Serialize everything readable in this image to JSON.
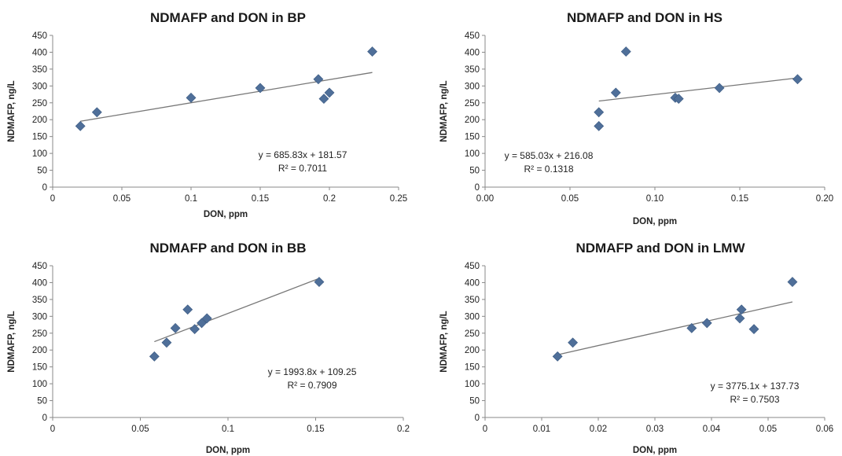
{
  "colors": {
    "marker": "#4f6f99",
    "trend": "#777777",
    "axis": "#888888"
  },
  "chart_data": [
    {
      "type": "scatter",
      "title": "NDMAFP and DON in BP",
      "xlabel": "DON, ppm",
      "ylabel": "NDMAFP, ng/L",
      "xlim": [
        0,
        0.25
      ],
      "ylim": [
        0,
        450
      ],
      "x_ticks": [
        0,
        0.05,
        0.1,
        0.15,
        0.2,
        0.25
      ],
      "x_tick_labels": [
        "0",
        "0.05",
        "0.1",
        "0.15",
        "0.2",
        "0.25"
      ],
      "y_ticks": [
        0,
        50,
        100,
        150,
        200,
        250,
        300,
        350,
        400,
        450
      ],
      "y_tick_labels": [
        "0",
        "50",
        "100",
        "150",
        "200",
        "250",
        "300",
        "350",
        "400",
        "450"
      ],
      "points": [
        {
          "x": 0.02,
          "y": 181
        },
        {
          "x": 0.032,
          "y": 222
        },
        {
          "x": 0.1,
          "y": 265
        },
        {
          "x": 0.15,
          "y": 294
        },
        {
          "x": 0.192,
          "y": 320
        },
        {
          "x": 0.196,
          "y": 262
        },
        {
          "x": 0.2,
          "y": 280
        },
        {
          "x": 0.231,
          "y": 402
        }
      ],
      "trendline": {
        "slope": 685.83,
        "intercept": 181.57,
        "x_range": [
          0.02,
          0.231
        ]
      },
      "equation": "y = 685.83x + 181.57",
      "r_squared": "R² = 0.7011",
      "grid": false,
      "legend": "none"
    },
    {
      "type": "scatter",
      "title": "NDMAFP and DON in HS",
      "xlabel": "DON, ppm",
      "ylabel": "NDMAFP, ng/L",
      "xlim": [
        0,
        0.2
      ],
      "ylim": [
        0,
        450
      ],
      "x_ticks": [
        0,
        0.05,
        0.1,
        0.15,
        0.2
      ],
      "x_tick_labels": [
        "0.00",
        "0.05",
        "0.10",
        "0.15",
        "0.20"
      ],
      "y_ticks": [
        0,
        50,
        100,
        150,
        200,
        250,
        300,
        350,
        400,
        450
      ],
      "y_tick_labels": [
        "0",
        "50",
        "100",
        "150",
        "200",
        "250",
        "300",
        "350",
        "400",
        "450"
      ],
      "points": [
        {
          "x": 0.067,
          "y": 181
        },
        {
          "x": 0.067,
          "y": 222
        },
        {
          "x": 0.077,
          "y": 280
        },
        {
          "x": 0.083,
          "y": 402
        },
        {
          "x": 0.112,
          "y": 265
        },
        {
          "x": 0.114,
          "y": 262
        },
        {
          "x": 0.138,
          "y": 294
        },
        {
          "x": 0.184,
          "y": 320
        }
      ],
      "trendline": {
        "slope": 585.03,
        "intercept": 216.08,
        "x_range": [
          0.067,
          0.184
        ]
      },
      "equation": "y = 585.03x + 216.08",
      "r_squared": "R² = 0.1318",
      "grid": false,
      "legend": "none"
    },
    {
      "type": "scatter",
      "title": "NDMAFP and DON in BB",
      "xlabel": "DON, ppm",
      "ylabel": "NDMAFP, ng/L",
      "xlim": [
        0,
        0.2
      ],
      "ylim": [
        0,
        450
      ],
      "x_ticks": [
        0,
        0.05,
        0.1,
        0.15,
        0.2
      ],
      "x_tick_labels": [
        "0",
        "0.05",
        "0.1",
        "0.15",
        "0.2"
      ],
      "y_ticks": [
        0,
        50,
        100,
        150,
        200,
        250,
        300,
        350,
        400,
        450
      ],
      "y_tick_labels": [
        "0",
        "50",
        "100",
        "150",
        "200",
        "250",
        "300",
        "350",
        "400",
        "450"
      ],
      "points": [
        {
          "x": 0.058,
          "y": 181
        },
        {
          "x": 0.065,
          "y": 222
        },
        {
          "x": 0.07,
          "y": 265
        },
        {
          "x": 0.077,
          "y": 320
        },
        {
          "x": 0.081,
          "y": 262
        },
        {
          "x": 0.085,
          "y": 280
        },
        {
          "x": 0.088,
          "y": 294
        },
        {
          "x": 0.152,
          "y": 402
        }
      ],
      "trendline": {
        "slope": 1993.8,
        "intercept": 109.25,
        "x_range": [
          0.058,
          0.152
        ]
      },
      "equation": "y = 1993.8x + 109.25",
      "r_squared": "R² = 0.7909",
      "grid": false,
      "legend": "none"
    },
    {
      "type": "scatter",
      "title": "NDMAFP and DON in LMW",
      "xlabel": "DON, ppm",
      "ylabel": "NDMAFP, ng/L",
      "xlim": [
        0,
        0.06
      ],
      "ylim": [
        0,
        450
      ],
      "x_ticks": [
        0,
        0.01,
        0.02,
        0.03,
        0.04,
        0.05,
        0.06
      ],
      "x_tick_labels": [
        "0",
        "0.01",
        "0.02",
        "0.03",
        "0.04",
        "0.05",
        "0.06"
      ],
      "y_ticks": [
        0,
        50,
        100,
        150,
        200,
        250,
        300,
        350,
        400,
        450
      ],
      "y_tick_labels": [
        "0",
        "50",
        "100",
        "150",
        "200",
        "250",
        "300",
        "350",
        "400",
        "450"
      ],
      "points": [
        {
          "x": 0.0128,
          "y": 181
        },
        {
          "x": 0.0155,
          "y": 222
        },
        {
          "x": 0.0365,
          "y": 265
        },
        {
          "x": 0.0392,
          "y": 280
        },
        {
          "x": 0.045,
          "y": 294
        },
        {
          "x": 0.0453,
          "y": 320
        },
        {
          "x": 0.0475,
          "y": 262
        },
        {
          "x": 0.0543,
          "y": 402
        }
      ],
      "trendline": {
        "slope": 3775.1,
        "intercept": 137.73,
        "x_range": [
          0.0128,
          0.0543
        ]
      },
      "equation": "y = 3775.1x + 137.73",
      "r_squared": "R² = 0.7503",
      "grid": false,
      "legend": "none"
    }
  ]
}
